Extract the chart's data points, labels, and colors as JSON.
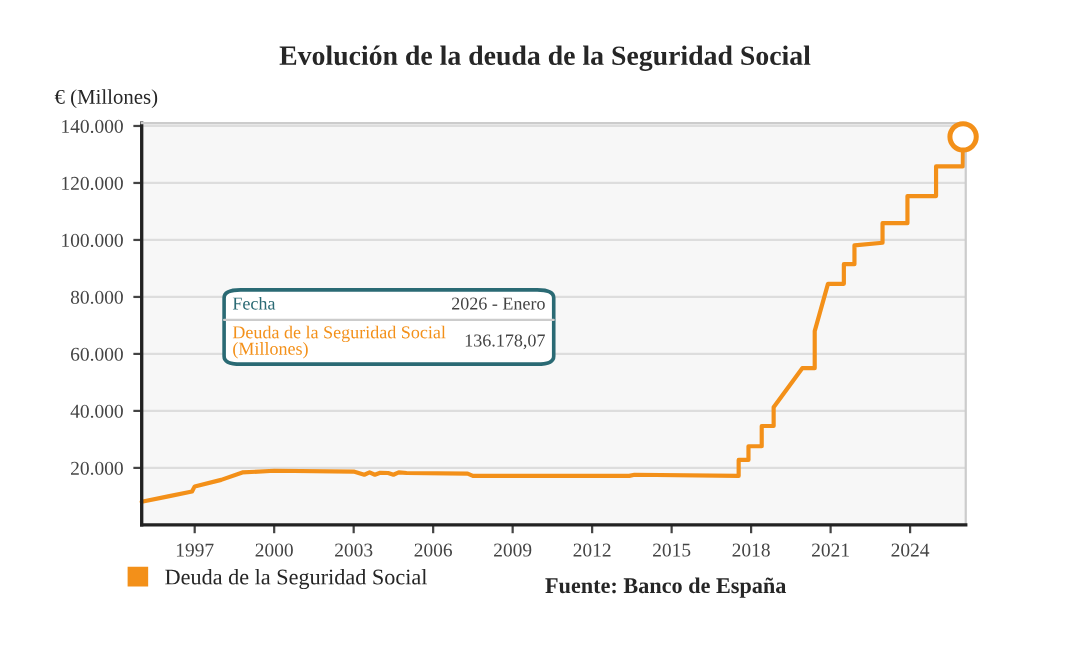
{
  "chart_data": {
    "type": "line",
    "title": "Evolución de la deuda de la Seguridad Social",
    "ylabel": "€ (Millones)",
    "annotations": [
      "Fecha",
      "2026 - Enero",
      "Deuda de la Seguridad Social\n(Millones)",
      "136.178,07",
      "Fuente: Banco de España"
    ],
    "series": [
      {
        "name": "Deuda de la Seguridad Social",
        "color": "#f39019",
        "x": [
          1995.0,
          1996.0,
          1996.9,
          1997.0,
          1998.0,
          1998.8,
          2000.0,
          2003.0,
          2003.4,
          2003.6,
          2003.8,
          2004.0,
          2004.3,
          2004.5,
          2004.7,
          2005.0,
          2007.3,
          2007.5,
          2013.4,
          2013.6,
          2017.53,
          2017.53,
          2017.9,
          2017.9,
          2018.4,
          2018.4,
          2018.85,
          2018.85,
          2019.93,
          2020.4,
          2020.4,
          2020.9,
          2021.5,
          2021.5,
          2021.9,
          2021.9,
          2022.96,
          2022.96,
          2023.9,
          2023.9,
          2024.98,
          2024.98,
          2025.99,
          2026.0
        ],
        "values": [
          8100,
          10000,
          11700,
          13500,
          15800,
          18400,
          19000,
          18700,
          17600,
          18400,
          17600,
          18300,
          18200,
          17600,
          18400,
          18200,
          18000,
          17200,
          17200,
          17600,
          17200,
          22800,
          22800,
          27600,
          27600,
          34700,
          34700,
          41300,
          55000,
          55000,
          68000,
          84600,
          84600,
          91500,
          91500,
          98100,
          99000,
          105900,
          105900,
          115400,
          115400,
          125800,
          125800,
          136178.07
        ]
      },
      {
        "type": "scatter",
        "color": "#f39019",
        "x": [
          2026.0
        ],
        "values": [
          136178.07
        ]
      }
    ],
    "xlim": [
      1995,
      2026.1
    ],
    "ylim": [
      0,
      141000
    ],
    "xticks": [
      1997,
      2000,
      2003,
      2006,
      2009,
      2012,
      2015,
      2018,
      2021,
      2024
    ],
    "yticks": [
      {
        "value": 20000,
        "label": "20.000"
      },
      {
        "value": 40000,
        "label": "40.000"
      },
      {
        "value": 60000,
        "label": "60.000"
      },
      {
        "value": 80000,
        "label": "80.000"
      },
      {
        "value": 100000,
        "label": "100.000"
      },
      {
        "value": 120000,
        "label": "120.000"
      },
      {
        "value": 140000,
        "label": "140.000"
      }
    ],
    "grid": "y",
    "legend": "bottom"
  }
}
